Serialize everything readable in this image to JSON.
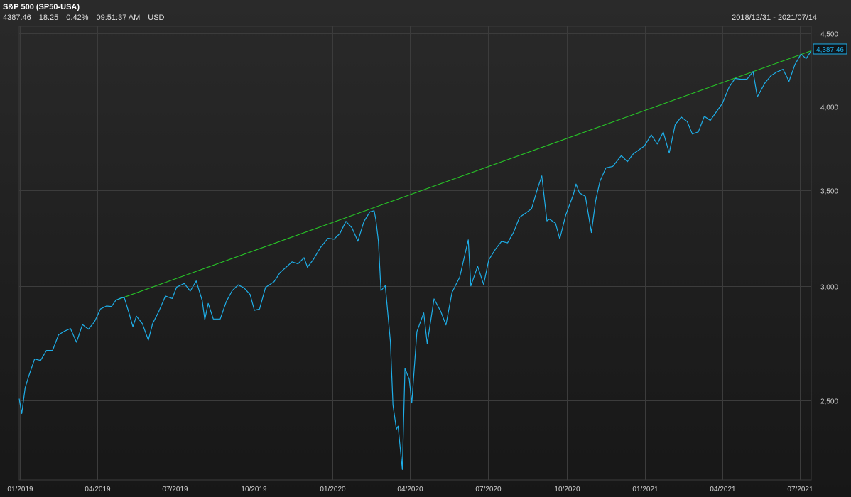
{
  "header": {
    "title": "S&P 500 (SP50-USA)",
    "last": "4387.46",
    "change": "18.25",
    "change_pct": "0.42%",
    "time": "09:51:37 AM",
    "currency": "USD",
    "date_range": "2018/12/31 - 2021/07/14"
  },
  "colors": {
    "price_line": "#1eaee8",
    "trend_line": "#27c427",
    "grid": "#3c3c3c",
    "last_label": "#1eaee8"
  },
  "chart_data": {
    "type": "line",
    "title": "S&P 500 (SP50-USA)",
    "xlabel": "",
    "ylabel": "",
    "xlim": [
      "2018-12-31",
      "2021-07-14"
    ],
    "ylim": [
      2200,
      4550
    ],
    "grid": true,
    "x_ticks": [
      "01/2019",
      "04/2019",
      "07/2019",
      "10/2019",
      "01/2020",
      "04/2020",
      "07/2020",
      "10/2020",
      "01/2021",
      "04/2021",
      "07/2021"
    ],
    "x_tick_dates": [
      "2019-01-01",
      "2019-04-01",
      "2019-07-01",
      "2019-10-01",
      "2020-01-01",
      "2020-04-01",
      "2020-07-01",
      "2020-10-01",
      "2021-01-01",
      "2021-04-01",
      "2021-07-01"
    ],
    "y_ticks": [
      {
        "value": 2500,
        "label": "2,500"
      },
      {
        "value": 3000,
        "label": "3,000"
      },
      {
        "value": 3500,
        "label": "3,500"
      },
      {
        "value": 4000,
        "label": "4,000"
      },
      {
        "value": 4500,
        "label": "4,500"
      }
    ],
    "last_value_label": "4,387.46",
    "last_value": 4387.46,
    "series": [
      {
        "x": [
          "2018-12-31",
          "2019-01-03",
          "2019-01-07",
          "2019-01-11",
          "2019-01-18",
          "2019-01-25",
          "2019-02-01",
          "2019-02-08",
          "2019-02-15",
          "2019-02-22",
          "2019-03-01",
          "2019-03-08",
          "2019-03-15",
          "2019-03-22",
          "2019-03-29",
          "2019-04-05",
          "2019-04-12",
          "2019-04-18",
          "2019-04-23",
          "2019-04-30",
          "2019-05-03",
          "2019-05-08",
          "2019-05-13",
          "2019-05-17",
          "2019-05-24",
          "2019-05-31",
          "2019-06-05",
          "2019-06-12",
          "2019-06-20",
          "2019-06-28",
          "2019-07-03",
          "2019-07-12",
          "2019-07-19",
          "2019-07-26",
          "2019-08-02",
          "2019-08-05",
          "2019-08-09",
          "2019-08-15",
          "2019-08-23",
          "2019-08-30",
          "2019-09-06",
          "2019-09-13",
          "2019-09-20",
          "2019-09-27",
          "2019-10-02",
          "2019-10-08",
          "2019-10-15",
          "2019-10-25",
          "2019-11-01",
          "2019-11-08",
          "2019-11-15",
          "2019-11-22",
          "2019-11-29",
          "2019-12-03",
          "2019-12-10",
          "2019-12-18",
          "2019-12-27",
          "2020-01-03",
          "2020-01-10",
          "2020-01-17",
          "2020-01-24",
          "2020-01-31",
          "2020-02-07",
          "2020-02-14",
          "2020-02-19",
          "2020-02-21",
          "2020-02-24",
          "2020-02-27",
          "2020-03-03",
          "2020-03-09",
          "2020-03-12",
          "2020-03-16",
          "2020-03-18",
          "2020-03-23",
          "2020-03-26",
          "2020-03-31",
          "2020-04-03",
          "2020-04-09",
          "2020-04-17",
          "2020-04-21",
          "2020-04-29",
          "2020-05-07",
          "2020-05-13",
          "2020-05-20",
          "2020-05-29",
          "2020-06-08",
          "2020-06-11",
          "2020-06-19",
          "2020-06-26",
          "2020-07-02",
          "2020-07-10",
          "2020-07-17",
          "2020-07-24",
          "2020-07-31",
          "2020-08-07",
          "2020-08-14",
          "2020-08-21",
          "2020-08-28",
          "2020-09-02",
          "2020-09-08",
          "2020-09-11",
          "2020-09-18",
          "2020-09-23",
          "2020-09-30",
          "2020-10-09",
          "2020-10-12",
          "2020-10-16",
          "2020-10-23",
          "2020-10-30",
          "2020-11-04",
          "2020-11-09",
          "2020-11-16",
          "2020-11-24",
          "2020-12-04",
          "2020-12-11",
          "2020-12-18",
          "2020-12-31",
          "2021-01-08",
          "2021-01-15",
          "2021-01-22",
          "2021-01-29",
          "2021-02-05",
          "2021-02-12",
          "2021-02-19",
          "2021-02-25",
          "2021-03-04",
          "2021-03-11",
          "2021-03-18",
          "2021-03-26",
          "2021-04-01",
          "2021-04-09",
          "2021-04-16",
          "2021-04-23",
          "2021-04-30",
          "2021-05-07",
          "2021-05-12",
          "2021-05-21",
          "2021-05-28",
          "2021-06-04",
          "2021-06-11",
          "2021-06-18",
          "2021-06-25",
          "2021-07-02",
          "2021-07-08",
          "2021-07-14"
        ],
        "values": [
          2506,
          2447,
          2550,
          2596,
          2670,
          2664,
          2707,
          2707,
          2776,
          2792,
          2804,
          2743,
          2822,
          2801,
          2834,
          2893,
          2907,
          2905,
          2934,
          2946,
          2945,
          2880,
          2812,
          2860,
          2826,
          2752,
          2826,
          2880,
          2954,
          2942,
          2996,
          3014,
          2977,
          3026,
          2932,
          2844,
          2919,
          2847,
          2847,
          2926,
          2979,
          3007,
          2992,
          2961,
          2887,
          2893,
          2995,
          3022,
          3067,
          3093,
          3120,
          3110,
          3141,
          3093,
          3132,
          3191,
          3240,
          3235,
          3265,
          3329,
          3295,
          3225,
          3328,
          3380,
          3386,
          3338,
          3226,
          2979,
          3003,
          2746,
          2481,
          2386,
          2398,
          2237,
          2630,
          2585,
          2489,
          2790,
          2875,
          2737,
          2940,
          2881,
          2820,
          2971,
          3044,
          3232,
          3002,
          3098,
          3009,
          3130,
          3185,
          3224,
          3216,
          3271,
          3351,
          3373,
          3397,
          3508,
          3580,
          3331,
          3341,
          3319,
          3237,
          3363,
          3477,
          3534,
          3484,
          3465,
          3270,
          3443,
          3550,
          3627,
          3635,
          3699,
          3663,
          3709,
          3756,
          3824,
          3768,
          3841,
          3714,
          3887,
          3934,
          3906,
          3829,
          3842,
          3939,
          3913,
          3974,
          4020,
          4128,
          4185,
          4180,
          4181,
          4232,
          4063,
          4156,
          4204,
          4229,
          4247,
          4166,
          4280,
          4352,
          4320,
          4375
        ]
      }
    ],
    "trend_line": {
      "x": [
        "2019-04-23",
        "2021-07-14"
      ],
      "values": [
        2934,
        4375
      ]
    }
  }
}
